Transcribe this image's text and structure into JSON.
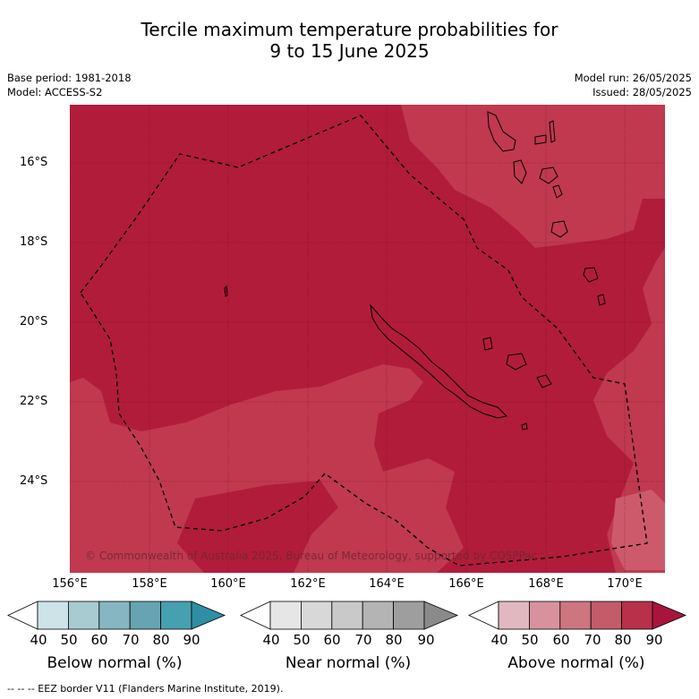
{
  "title": {
    "line1": "Tercile maximum temperature probabilities for",
    "line2": "9 to 15 June 2025"
  },
  "meta": {
    "base_period": "Base period: 1981-2018",
    "model": "Model: ACCESS-S2",
    "model_run": "Model run: 26/05/2025",
    "issued": "Issued: 28/05/2025"
  },
  "map": {
    "lat_labels": [
      "16°S",
      "18°S",
      "20°S",
      "22°S",
      "24°S"
    ],
    "lon_labels": [
      "156°E",
      "158°E",
      "160°E",
      "162°E",
      "164°E",
      "166°E",
      "168°E",
      "170°E"
    ],
    "copyright": "© Commonwealth of Australia 2025, Bureau of Meteorology, supported by COSPPac",
    "colors": {
      "above_80_90": "#b11c3a",
      "above_70_80": "#c0394f",
      "border": "#000000"
    }
  },
  "legend": {
    "ticks": [
      "40",
      "50",
      "60",
      "70",
      "80",
      "90"
    ],
    "below": {
      "label": "Below normal (%)",
      "colors": [
        "#ffffff",
        "#cde3e8",
        "#a8cbd2",
        "#86b6c1",
        "#66a4b2",
        "#45a0b0",
        "#2e8ea3"
      ]
    },
    "near": {
      "label": "Near normal (%)",
      "colors": [
        "#ffffff",
        "#e6e6e6",
        "#d8d8d8",
        "#c9c9c9",
        "#b4b4b4",
        "#9e9e9e",
        "#8a8a8a"
      ]
    },
    "above": {
      "label": "Above normal (%)",
      "colors": [
        "#ffffff",
        "#e1b7c0",
        "#d8929d",
        "#cd767f",
        "#c35b69",
        "#b83049",
        "#a9143b"
      ]
    }
  },
  "footer": "-- -- -- EEZ border V11 (Flanders Marine Institute, 2019)."
}
